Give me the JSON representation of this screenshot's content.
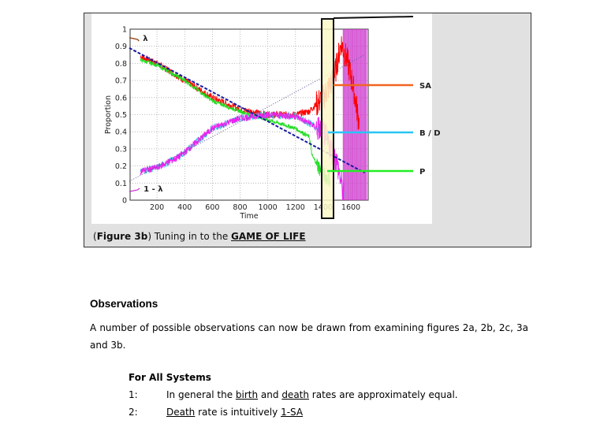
{
  "figure": {
    "caption_open": "(",
    "caption_label": "Figure 3b",
    "caption_mid": ") Tuning in to the ",
    "caption_link": "GAME OF LIFE",
    "callouts": {
      "sa": "SA",
      "bd": "B / D",
      "p": "P"
    },
    "colors": {
      "sa": "#f26522",
      "bd": "#29c5f6",
      "p": "#22ee22",
      "highlight": "#fbf7c8"
    }
  },
  "chart_data": {
    "type": "line",
    "xlabel": "Time",
    "ylabel": "Proportion",
    "xlim": [
      0,
      1720
    ],
    "ylim": [
      0,
      1
    ],
    "xticks": [
      "200",
      "400",
      "600",
      "800",
      "1000",
      "1200",
      "1400",
      "1600"
    ],
    "yticks": [
      "0",
      "0.1",
      "0.2",
      "0.3",
      "0.4",
      "0.5",
      "0.6",
      "0.7",
      "0.8",
      "0.9",
      "1"
    ],
    "grid": true,
    "annotations": [
      "λ",
      "1 - λ"
    ],
    "series": [
      {
        "name": "SA",
        "color": "#ff0000",
        "points": [
          [
            80,
            0.84
          ],
          [
            200,
            0.8
          ],
          [
            400,
            0.7
          ],
          [
            600,
            0.6
          ],
          [
            800,
            0.53
          ],
          [
            1000,
            0.5
          ],
          [
            1200,
            0.5
          ],
          [
            1300,
            0.52
          ],
          [
            1400,
            0.6
          ],
          [
            1480,
            0.72
          ],
          [
            1530,
            0.92
          ],
          [
            1580,
            0.8
          ],
          [
            1620,
            0.65
          ],
          [
            1660,
            0.45
          ]
        ]
      },
      {
        "name": "P",
        "color": "#22dd22",
        "points": [
          [
            80,
            0.82
          ],
          [
            200,
            0.79
          ],
          [
            400,
            0.7
          ],
          [
            600,
            0.58
          ],
          [
            800,
            0.52
          ],
          [
            1000,
            0.47
          ],
          [
            1200,
            0.42
          ],
          [
            1300,
            0.37
          ],
          [
            1320,
            0.26
          ],
          [
            1400,
            0.15
          ],
          [
            1450,
            0.12
          ]
        ]
      },
      {
        "name": "B / D",
        "color": "#ee22ee",
        "points": [
          [
            80,
            0.17
          ],
          [
            200,
            0.19
          ],
          [
            350,
            0.25
          ],
          [
            400,
            0.28
          ],
          [
            600,
            0.42
          ],
          [
            800,
            0.48
          ],
          [
            1000,
            0.5
          ],
          [
            1200,
            0.49
          ],
          [
            1300,
            0.45
          ],
          [
            1400,
            0.4
          ],
          [
            1500,
            0.22
          ],
          [
            1550,
            0.02
          ]
        ]
      },
      {
        "name": "λ",
        "color": "#1a1aa0",
        "points": [
          [
            0,
            0.89
          ],
          [
            1700,
            0.16
          ]
        ]
      },
      {
        "name": "1 - λ",
        "color": "#555599",
        "points": [
          [
            0,
            0.11
          ],
          [
            1700,
            0.85
          ]
        ]
      }
    ]
  },
  "observations": {
    "heading": "Observations",
    "paragraph": "A number of possible observations can now be drawn from examining figures 2a, 2b, 2c, 3a and 3b.",
    "subheading": "For All Systems",
    "items": [
      {
        "num": "1:",
        "t1": "In general the ",
        "u1": "birth",
        "t2": " and ",
        "u2": "death",
        "t3": " rates are approximately equal."
      },
      {
        "num": "2:",
        "u1": "Death",
        "t2": " rate is intuitively ",
        "u2": "1-SA"
      }
    ]
  }
}
